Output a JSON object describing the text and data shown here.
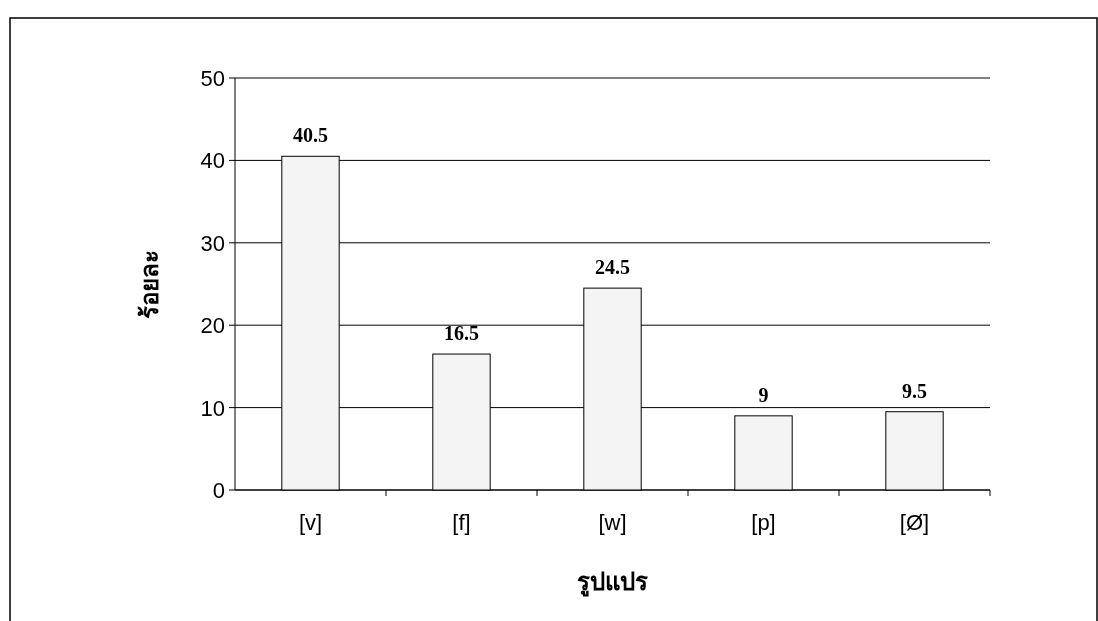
{
  "chart_data": {
    "type": "bar",
    "xlabel": "รูปแปร",
    "ylabel": "ร้อยละ",
    "categories": [
      "[v]",
      "[f]",
      "[w]",
      "[p]",
      "[Ø]"
    ],
    "values": [
      40.5,
      16.5,
      24.5,
      9,
      9.5
    ],
    "color": "#f4f4f4",
    "ylim": [
      0,
      50
    ],
    "yticks": [
      0,
      10,
      20,
      30,
      40,
      50
    ],
    "grid": "y",
    "data_labels": true
  }
}
